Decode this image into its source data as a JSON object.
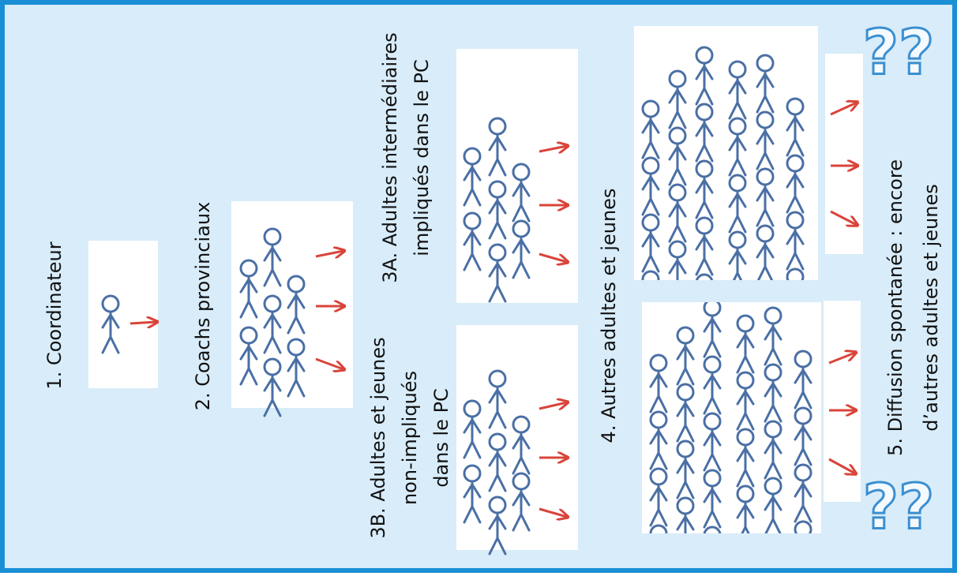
{
  "nodes": [
    {
      "label": [
        "1. Coordinateur"
      ]
    },
    {
      "label": [
        "2. Coachs provinciaux"
      ]
    },
    {
      "label": [
        "3A. Adultes intermédiaires",
        "impliqués dans le PC"
      ]
    },
    {
      "label": [
        "3B. Adultes et jeunes",
        "non-impliqués",
        "dans le PC"
      ]
    },
    {
      "label": [
        "4. Autres adultes et jeunes"
      ]
    },
    {
      "label": [
        "5. Diffusion spontanée : encore",
        "d’autres adultes et jeunes"
      ]
    }
  ],
  "marks": [
    "??",
    "??"
  ]
}
